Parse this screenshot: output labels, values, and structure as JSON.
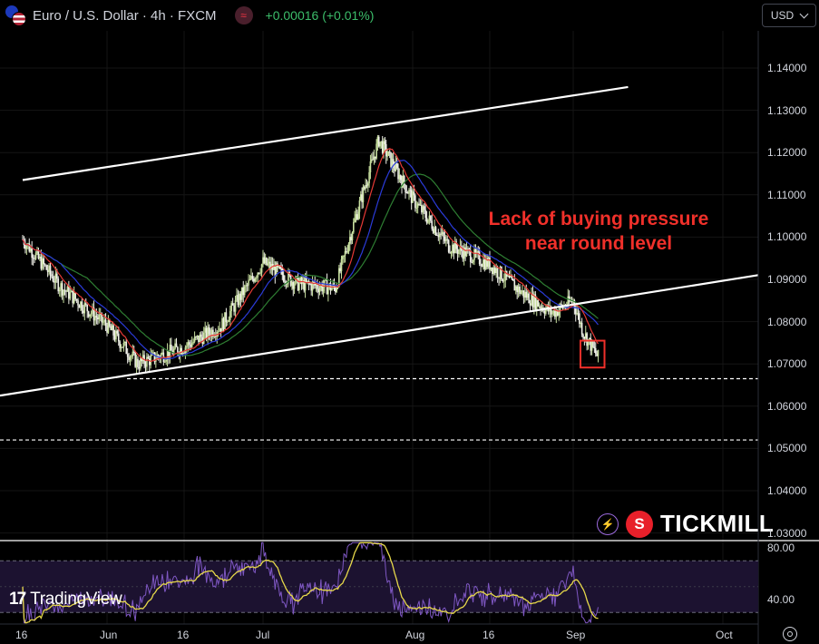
{
  "header": {
    "symbol_title": "Euro / U.S. Dollar · 4h · FXCM",
    "price_change": "+0.00016 (+0.01%)",
    "currency": "USD",
    "badge_icon": "≈"
  },
  "annotation": {
    "line1": "Lack of buying pressure",
    "line2": "near round level"
  },
  "branding": {
    "tradingview": "TradingView",
    "tickmill": "TICKMILL"
  },
  "price_axis": [
    "1.14000",
    "1.13000",
    "1.12000",
    "1.11000",
    "1.10000",
    "1.09000",
    "1.08000",
    "1.07000",
    "1.06000",
    "1.05000",
    "1.04000",
    "1.03000"
  ],
  "rsi_axis": [
    "80.00",
    "40.00"
  ],
  "time_axis": [
    "16",
    "Jun",
    "16",
    "Jul",
    "Aug",
    "16",
    "Sep",
    "Oct"
  ],
  "colors": {
    "background": "#000000",
    "candle_up": "#c8e0a0",
    "candle_down": "#f0f0e8",
    "ma_fast": "#e53935",
    "ma_mid": "#2b3bd9",
    "ma_slow": "#2e7d32",
    "rsi": "#7e57c2",
    "rsi_ma": "#e6d84a",
    "annotation": "#f0302a"
  },
  "chart_data": {
    "type": "candlestick",
    "instrument": "Euro / U.S. Dollar",
    "timeframe": "4h",
    "ylim": [
      1.025,
      1.148
    ],
    "x": [
      "May 16",
      "May 23",
      "Jun 1",
      "Jun 7",
      "Jun 16",
      "Jun 23",
      "Jul 1",
      "Jul 8",
      "Jul 16",
      "Jul 20",
      "Jul 25",
      "Aug 1",
      "Aug 8",
      "Aug 12",
      "Aug 16",
      "Aug 22",
      "Aug 28",
      "Sep 1",
      "Sep 3",
      "Sep 6"
    ],
    "series": [
      {
        "name": "close",
        "values": [
          1.0995,
          1.0885,
          1.079,
          1.07,
          1.074,
          1.079,
          1.094,
          1.089,
          1.088,
          1.104,
          1.123,
          1.109,
          1.098,
          1.096,
          1.0935,
          1.087,
          1.082,
          1.085,
          1.0775,
          1.0715
        ]
      }
    ],
    "channel_upper": [
      [
        "May 16",
        1.1135
      ],
      [
        "Sep 12",
        1.1355
      ]
    ],
    "channel_lower": [
      [
        "May 16",
        1.0625
      ],
      [
        "Oct 8",
        1.091
      ]
    ],
    "support_levels": [
      1.0665,
      1.052
    ],
    "highlight": {
      "from": "Sep 3",
      "to": "Sep 6",
      "low": 1.07,
      "high": 1.0755
    },
    "rsi_levels": [
      80,
      40
    ]
  }
}
